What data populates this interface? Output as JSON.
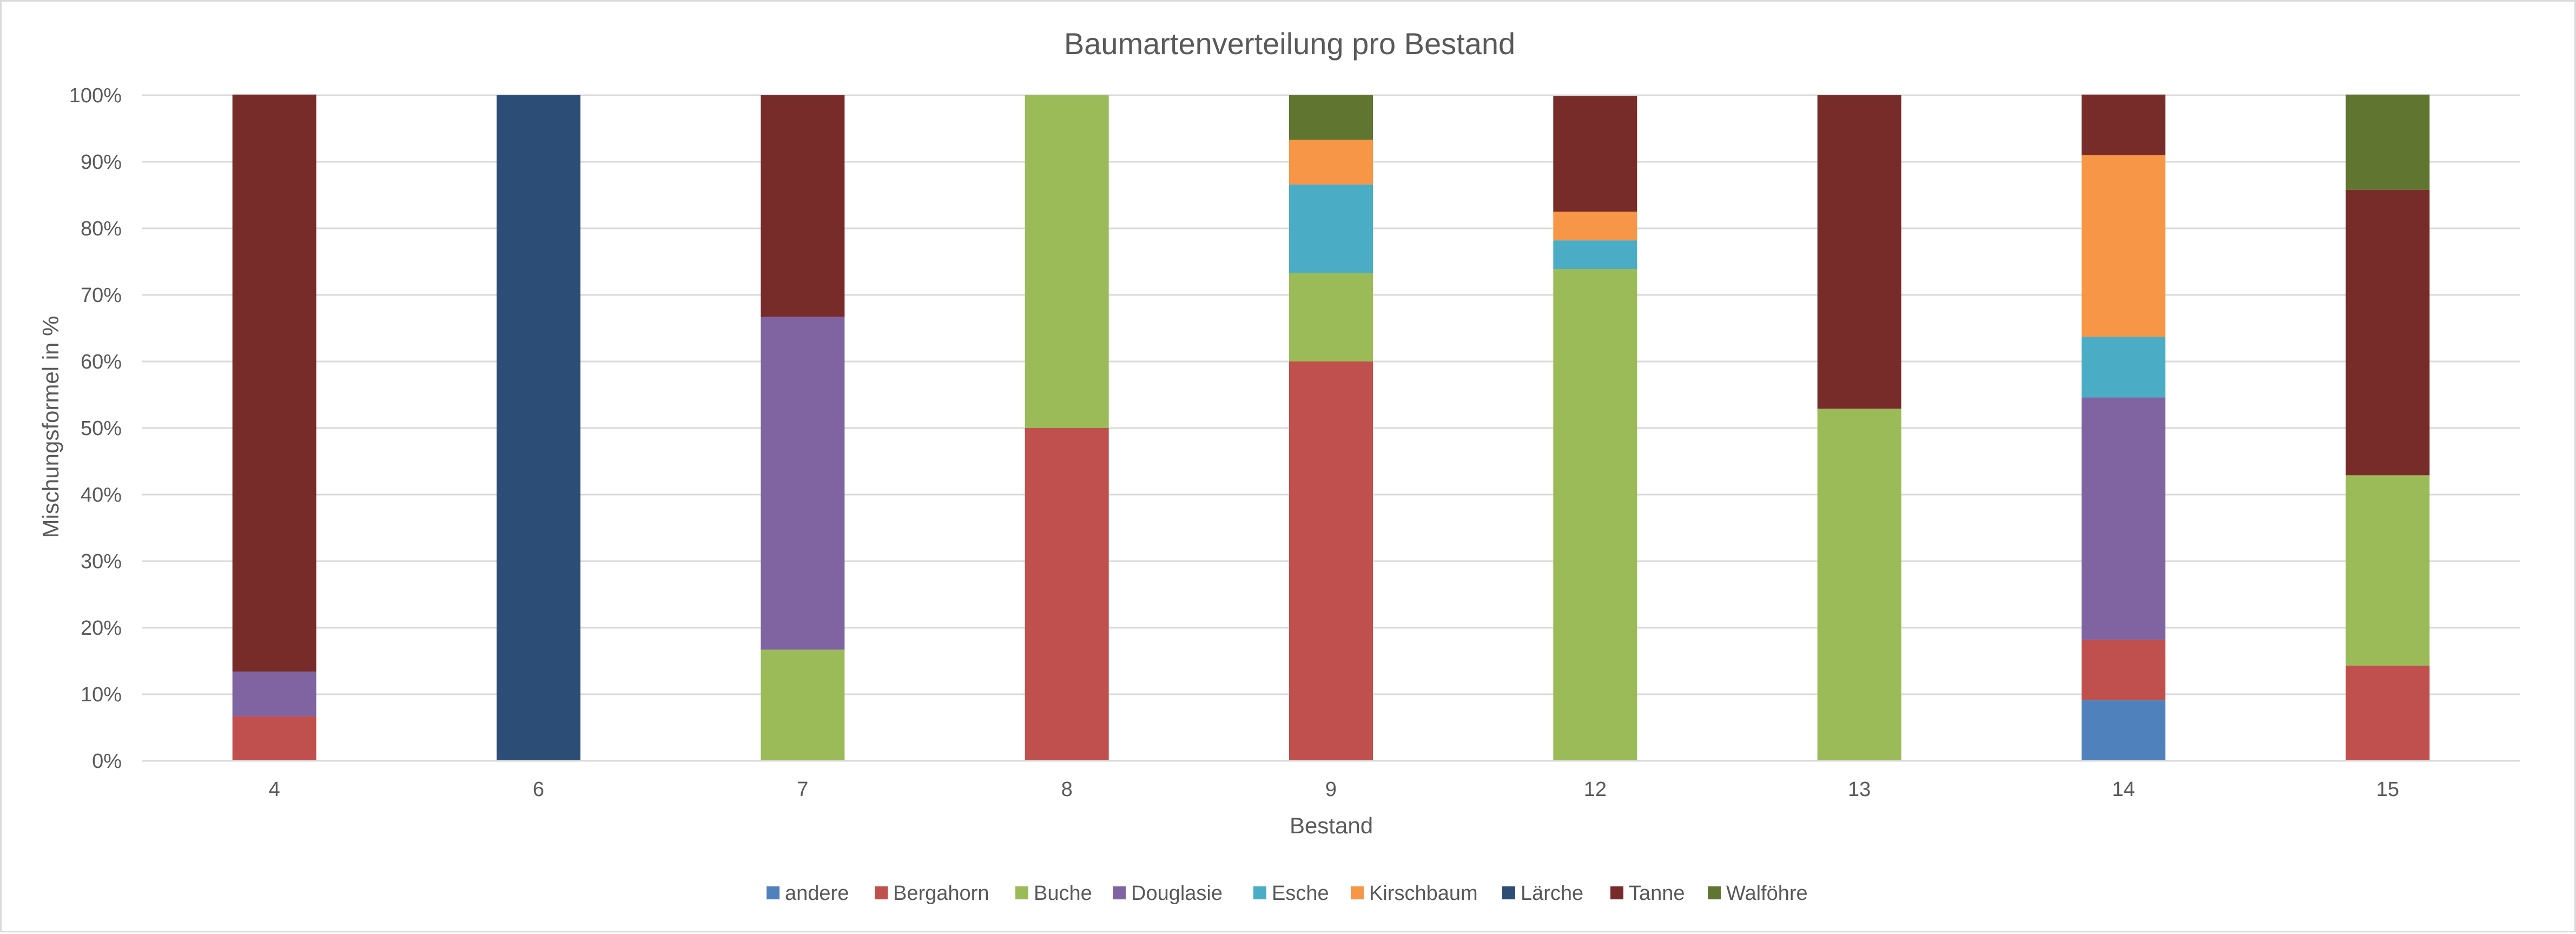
{
  "chart_data": {
    "type": "bar",
    "stacked": "percent",
    "title": "Baumartenverteilung pro Bestand",
    "xlabel": "Bestand",
    "ylabel": "Mischungsformel in %",
    "ylim": [
      0,
      100
    ],
    "yticks": [
      "0%",
      "10%",
      "20%",
      "30%",
      "40%",
      "50%",
      "60%",
      "70%",
      "80%",
      "90%",
      "100%"
    ],
    "grid": true,
    "legend_position": "bottom",
    "categories": [
      "4",
      "6",
      "7",
      "8",
      "9",
      "12",
      "13",
      "14",
      "15"
    ],
    "series": [
      {
        "name": "andere",
        "color": "#4f81bd",
        "values": [
          0,
          0,
          0,
          0,
          0,
          0,
          0,
          9.1,
          0
        ]
      },
      {
        "name": "Bergahorn",
        "color": "#c0504d",
        "values": [
          6.7,
          0,
          0,
          50,
          60,
          0,
          0,
          9.1,
          14.3
        ]
      },
      {
        "name": "Buche",
        "color": "#9bbb59",
        "values": [
          0,
          0,
          16.7,
          50,
          13.3,
          73.9,
          52.9,
          0,
          28.6
        ]
      },
      {
        "name": "Douglasie",
        "color": "#8064a2",
        "values": [
          6.7,
          0,
          50,
          0,
          0,
          0,
          0,
          36.4,
          0
        ]
      },
      {
        "name": "Esche",
        "color": "#4bacc6",
        "values": [
          0,
          0,
          0,
          0,
          13.3,
          4.3,
          0,
          9.1,
          0
        ]
      },
      {
        "name": "Kirschbaum",
        "color": "#f79646",
        "values": [
          0,
          0,
          0,
          0,
          6.7,
          4.3,
          0,
          27.3,
          0
        ]
      },
      {
        "name": "Lärche",
        "color": "#2c4d75",
        "values": [
          0,
          100,
          0,
          0,
          0,
          0,
          0,
          0,
          0
        ]
      },
      {
        "name": "Tanne",
        "color": "#772c2a",
        "values": [
          86.7,
          0,
          33.3,
          0,
          0,
          17.4,
          47.1,
          9.1,
          42.9
        ]
      },
      {
        "name": "Walföhre",
        "color": "#5f7530",
        "values": [
          0,
          0,
          0,
          0,
          6.7,
          0,
          0,
          0,
          14.3
        ]
      }
    ]
  }
}
